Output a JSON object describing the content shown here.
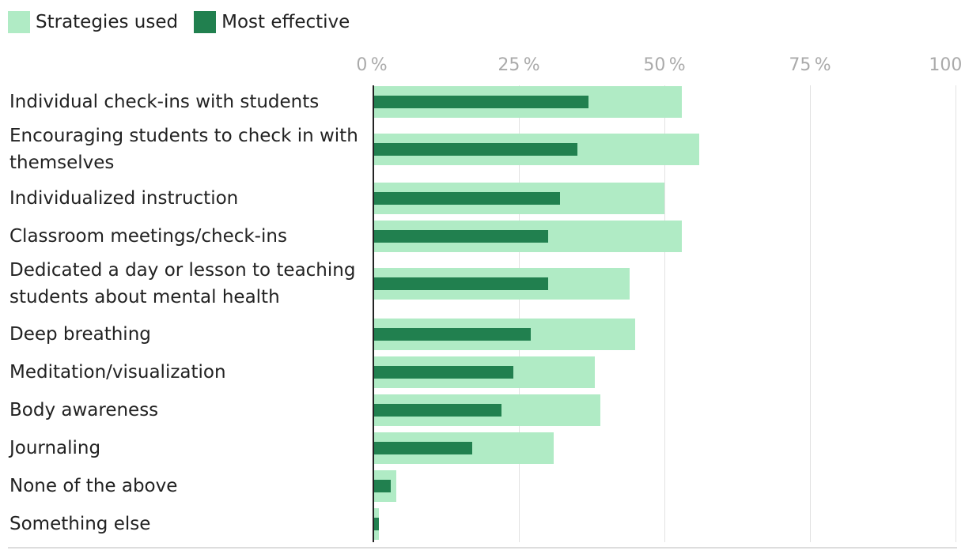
{
  "chart_data": {
    "type": "bar",
    "orientation": "horizontal",
    "legend": [
      {
        "label": "Strategies used",
        "color": "#b0ebc5"
      },
      {
        "label": "Most effective",
        "color": "#21804f"
      }
    ],
    "x_ticks": [
      "0 %",
      "25 %",
      "50 %",
      "75 %",
      "100 %"
    ],
    "xlim": [
      0,
      100
    ],
    "categories": [
      "Individual check-ins with students",
      "Encouraging students to check in with themselves",
      "Individualized instruction",
      "Classroom meetings/check-ins",
      "Dedicated a day or lesson to teaching students about mental health",
      "Deep breathing",
      "Meditation/visualization",
      "Body awareness",
      "Journaling",
      "None of the above",
      "Something else"
    ],
    "series": [
      {
        "name": "Strategies used",
        "values": [
          53,
          56,
          50,
          53,
          44,
          45,
          38,
          39,
          31,
          4,
          1
        ]
      },
      {
        "name": "Most effective",
        "values": [
          37,
          35,
          32,
          30,
          30,
          27,
          24,
          22,
          17,
          3,
          1
        ]
      }
    ]
  }
}
